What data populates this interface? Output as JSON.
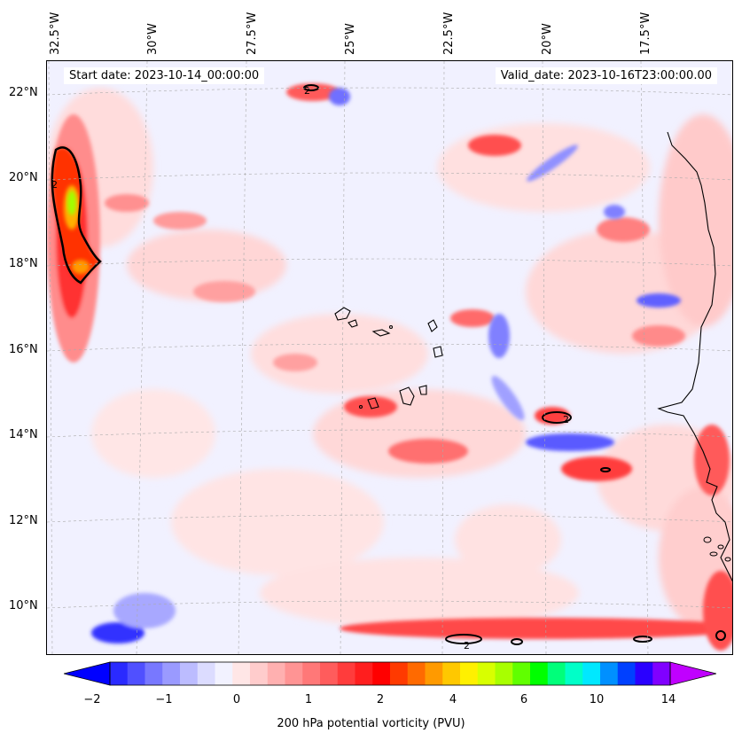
{
  "header": {
    "start_date": "Start date: 2023-10-14_00:00:00",
    "valid_date": "Valid_date: 2023-10-16T23:00:00.00"
  },
  "map": {
    "lon_labels": [
      "32.5°W",
      "30°W",
      "27.5°W",
      "25°W",
      "22.5°W",
      "20°W",
      "17.5°W"
    ],
    "lat_labels": [
      "22°N",
      "20°N",
      "18°N",
      "16°N",
      "14°N",
      "12°N",
      "10°N"
    ],
    "contour_label": "2"
  },
  "colorbar": {
    "tick_labels": [
      "−2",
      "−1",
      "0",
      "1",
      "2",
      "4",
      "6",
      "10",
      "14"
    ],
    "label": "200 hPa potential vorticity (PVU)",
    "colors": [
      "#0000ff",
      "#2a2aff",
      "#5050ff",
      "#7878ff",
      "#9a9aff",
      "#bcbcff",
      "#dcdcff",
      "#f2f2ff",
      "#ffe6e6",
      "#ffcccc",
      "#ffb0b0",
      "#ff9494",
      "#ff7878",
      "#ff5c5c",
      "#ff3c3c",
      "#ff1e1e",
      "#ff0000",
      "#ff3a00",
      "#ff6a00",
      "#ff9a00",
      "#ffc800",
      "#fff000",
      "#d8ff00",
      "#a8ff00",
      "#60ff00",
      "#00ff00",
      "#00ff7a",
      "#00ffc8",
      "#00e8ff",
      "#0090ff",
      "#0040ff",
      "#2a00ff",
      "#8000ff",
      "#c000ff"
    ]
  }
}
